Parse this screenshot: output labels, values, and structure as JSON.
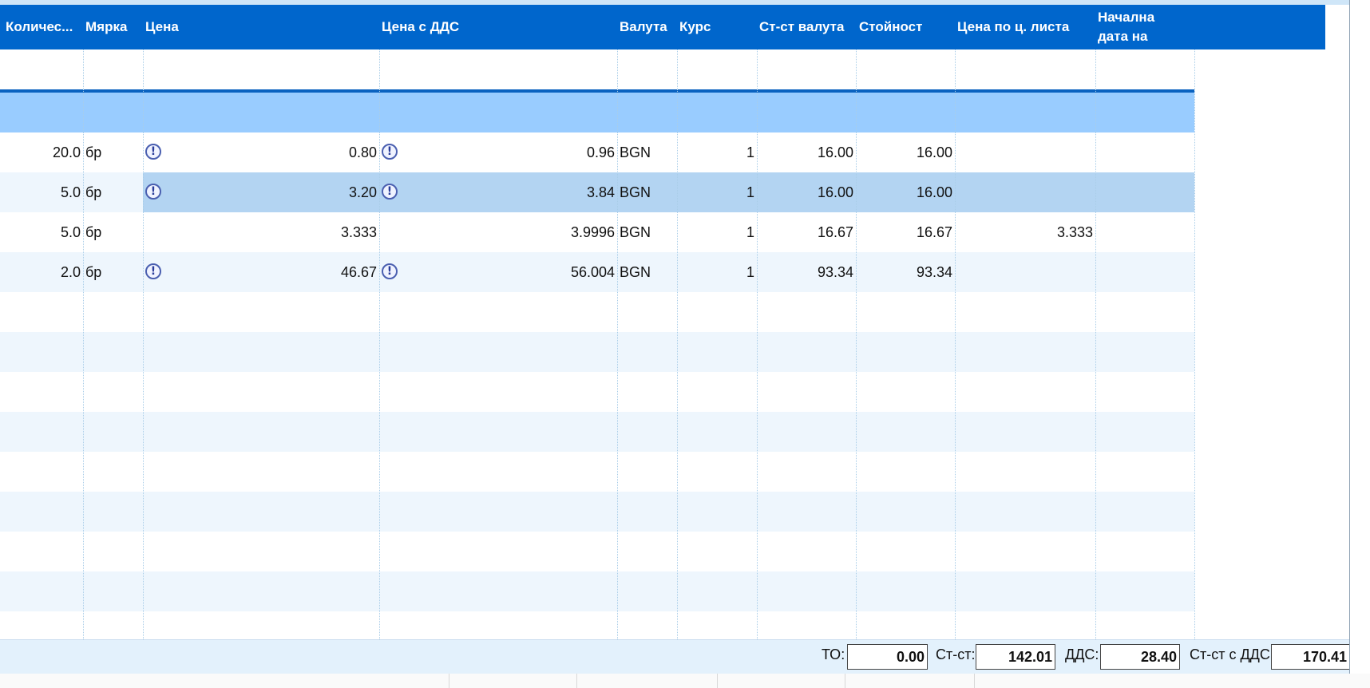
{
  "columns": {
    "quantity": "Количес...",
    "unit": "Мярка",
    "price": "Цена",
    "price_vat": "Цена с ДДС",
    "currency": "Валута",
    "rate": "Курс",
    "value_currency": "Ст-ст валута",
    "value": "Стойност",
    "list_price": "Цена по ц. листа",
    "start_date": "Начална дата на"
  },
  "rows": [
    {
      "quantity": "20.0",
      "unit": "бр",
      "price": "0.80",
      "price_vat": "0.96",
      "currency": "BGN",
      "rate": "1",
      "value_currency": "16.00",
      "value": "16.00",
      "list_price": "",
      "warn_price": true,
      "warn_vat": true
    },
    {
      "quantity": "5.0",
      "unit": "бр",
      "price": "3.20",
      "price_vat": "3.84",
      "currency": "BGN",
      "rate": "1",
      "value_currency": "16.00",
      "value": "16.00",
      "list_price": "",
      "warn_price": true,
      "warn_vat": true,
      "selected": true
    },
    {
      "quantity": "5.0",
      "unit": "бр",
      "price": "3.333",
      "price_vat": "3.9996",
      "currency": "BGN",
      "rate": "1",
      "value_currency": "16.67",
      "value": "16.67",
      "list_price": "3.333",
      "warn_price": false,
      "warn_vat": false
    },
    {
      "quantity": "2.0",
      "unit": "бр",
      "price": "46.67",
      "price_vat": "56.004",
      "currency": "BGN",
      "rate": "1",
      "value_currency": "93.34",
      "value": "93.34",
      "list_price": "",
      "warn_price": true,
      "warn_vat": true
    }
  ],
  "warning_icon": "exclamation-circle-icon",
  "totals": {
    "to_label": "ТО:",
    "to_value": "0.00",
    "cost_label": "Ст-ст:",
    "cost_value": "142.01",
    "vat_label": "ДДС:",
    "vat_value": "28.40",
    "cost_vat_label": "Ст-ст с ДДС:",
    "cost_vat_value": "170.41"
  },
  "colors": {
    "header_bg": "#0066cc",
    "group_row_bg": "#99ccff",
    "selected_row_bg": "#b3d4f2",
    "alt_row_bg": "#eef6fd",
    "status_bg": "#e3f1fc"
  }
}
